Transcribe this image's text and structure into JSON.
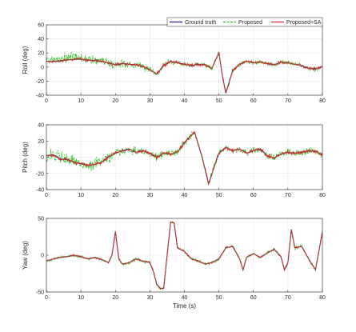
{
  "chart_data": [
    {
      "type": "line",
      "xlabel": "",
      "ylabel": "Roll (deg)",
      "xlim": [
        0,
        80
      ],
      "ylim": [
        -40,
        60
      ],
      "xticks": [
        0,
        10,
        20,
        30,
        40,
        50,
        60,
        70,
        80
      ],
      "yticks": [
        -40,
        -20,
        0,
        20,
        40,
        60
      ],
      "grid": true,
      "legend_position": "top-right",
      "legend": [
        "Ground truth",
        "Proposed",
        "Proposed+SA"
      ],
      "x": [
        0,
        2,
        4,
        6,
        8,
        10,
        12,
        14,
        16,
        18,
        20,
        22,
        24,
        26,
        28,
        30,
        32,
        34,
        36,
        38,
        40,
        42,
        44,
        46,
        48,
        49,
        50,
        51,
        52,
        54,
        56,
        58,
        60,
        62,
        64,
        66,
        68,
        70,
        72,
        74,
        76,
        78,
        80
      ],
      "series": [
        {
          "name": "Ground truth",
          "color": "#1f1f99",
          "values": [
            8,
            8,
            9,
            10,
            11,
            11,
            10,
            9,
            8,
            6,
            3,
            5,
            4,
            3,
            1,
            -4,
            -10,
            2,
            8,
            6,
            4,
            2,
            4,
            3,
            -2,
            10,
            20,
            -12,
            -37,
            -5,
            4,
            8,
            6,
            7,
            5,
            3,
            7,
            6,
            4,
            2,
            -2,
            -3,
            1
          ]
        },
        {
          "name": "Proposed",
          "color": "#22c422",
          "values": [
            8,
            10,
            10,
            12,
            15,
            12,
            11,
            9,
            9,
            6,
            3,
            6,
            4,
            3,
            1,
            -4,
            -10,
            2,
            8,
            6,
            4,
            2,
            4,
            3,
            -2,
            10,
            20,
            -12,
            -37,
            -5,
            4,
            8,
            6,
            7,
            5,
            3,
            7,
            6,
            4,
            2,
            -2,
            -3,
            1
          ],
          "noise": 12,
          "noise_profile": [
            [
              0,
              12
            ],
            [
              25,
              9
            ],
            [
              40,
              5
            ],
            [
              80,
              5
            ]
          ]
        },
        {
          "name": "Proposed+SA",
          "color": "#e02020",
          "values": [
            8,
            8,
            9,
            10,
            11,
            11,
            10,
            9,
            8,
            6,
            3,
            5,
            4,
            3,
            1,
            -4,
            -10,
            2,
            8,
            6,
            4,
            2,
            4,
            3,
            -2,
            10,
            20,
            -12,
            -37,
            -5,
            4,
            8,
            6,
            7,
            5,
            3,
            7,
            6,
            4,
            2,
            -2,
            -3,
            1
          ],
          "noise": 3
        }
      ]
    },
    {
      "type": "line",
      "xlabel": "",
      "ylabel": "Pitch (deg)",
      "xlim": [
        0,
        80
      ],
      "ylim": [
        -40,
        40
      ],
      "xticks": [
        0,
        10,
        20,
        30,
        40,
        50,
        60,
        70,
        80
      ],
      "yticks": [
        -40,
        -20,
        0,
        20,
        40
      ],
      "grid": true,
      "x": [
        0,
        2,
        4,
        6,
        8,
        10,
        12,
        14,
        16,
        18,
        20,
        22,
        24,
        26,
        28,
        30,
        32,
        34,
        36,
        38,
        40,
        42,
        43,
        45,
        46,
        47,
        48,
        50,
        52,
        54,
        56,
        58,
        60,
        62,
        64,
        66,
        68,
        70,
        72,
        74,
        76,
        78,
        80
      ],
      "series": [
        {
          "name": "Ground truth",
          "color": "#1f1f99",
          "values": [
            2,
            3,
            -2,
            -3,
            -6,
            -8,
            -10,
            -9,
            -6,
            0,
            5,
            8,
            10,
            6,
            8,
            5,
            0,
            5,
            4,
            6,
            18,
            27,
            30,
            2,
            -15,
            -33,
            -20,
            5,
            12,
            8,
            10,
            5,
            8,
            10,
            2,
            -1,
            4,
            6,
            5,
            6,
            8,
            7,
            3
          ]
        },
        {
          "name": "Proposed",
          "color": "#22c422",
          "values": [
            2,
            3,
            -2,
            -3,
            -6,
            -8,
            -10,
            -9,
            -6,
            0,
            5,
            8,
            10,
            6,
            8,
            5,
            0,
            5,
            4,
            6,
            18,
            27,
            30,
            2,
            -15,
            -33,
            -20,
            5,
            12,
            8,
            10,
            5,
            8,
            10,
            2,
            -1,
            4,
            6,
            5,
            6,
            8,
            7,
            3
          ],
          "noise": 14,
          "noise_profile": [
            [
              0,
              14
            ],
            [
              20,
              9
            ],
            [
              40,
              6
            ],
            [
              80,
              6
            ]
          ]
        },
        {
          "name": "Proposed+SA",
          "color": "#e02020",
          "values": [
            2,
            3,
            -2,
            -3,
            -6,
            -8,
            -10,
            -9,
            -6,
            0,
            5,
            8,
            10,
            6,
            8,
            5,
            0,
            5,
            4,
            6,
            18,
            27,
            30,
            2,
            -15,
            -33,
            -20,
            5,
            12,
            8,
            10,
            5,
            8,
            10,
            2,
            -1,
            4,
            6,
            5,
            6,
            8,
            7,
            3
          ],
          "noise": 3
        }
      ]
    },
    {
      "type": "line",
      "xlabel": "Time (s)",
      "ylabel": "Yaw (deg)",
      "xlim": [
        0,
        80
      ],
      "ylim": [
        -50,
        50
      ],
      "xticks": [
        0,
        10,
        20,
        30,
        40,
        50,
        60,
        70,
        80
      ],
      "yticks": [
        -50,
        0,
        50
      ],
      "grid": true,
      "x": [
        0,
        2,
        4,
        6,
        8,
        10,
        12,
        14,
        16,
        18,
        19,
        20,
        21,
        22,
        24,
        26,
        28,
        30,
        31,
        32,
        33,
        34,
        35,
        36,
        37,
        38,
        40,
        42,
        44,
        46,
        48,
        50,
        52,
        54,
        56,
        57,
        58,
        60,
        62,
        64,
        66,
        68,
        69,
        70,
        71,
        72,
        74,
        76,
        78,
        80
      ],
      "series": [
        {
          "name": "Ground truth",
          "color": "#1f1f99",
          "values": [
            -8,
            -5,
            -3,
            -2,
            0,
            -2,
            -5,
            -3,
            -6,
            -10,
            0,
            32,
            -5,
            -12,
            -10,
            -5,
            -8,
            -10,
            -22,
            -40,
            -45,
            -45,
            0,
            45,
            44,
            10,
            5,
            -5,
            -8,
            -12,
            -10,
            -5,
            10,
            12,
            -5,
            -20,
            -3,
            2,
            -3,
            3,
            8,
            -2,
            -20,
            -10,
            35,
            10,
            12,
            -5,
            -20,
            32
          ]
        },
        {
          "name": "Proposed",
          "color": "#22c422",
          "values": [
            -8,
            -5,
            -3,
            -2,
            0,
            -2,
            -5,
            -3,
            -6,
            -10,
            0,
            32,
            -5,
            -12,
            -10,
            -5,
            -8,
            -10,
            -22,
            -40,
            -45,
            -45,
            0,
            45,
            44,
            10,
            5,
            -5,
            -8,
            -12,
            -10,
            -5,
            10,
            12,
            -5,
            -20,
            -3,
            2,
            -3,
            3,
            8,
            -2,
            -20,
            -10,
            35,
            10,
            12,
            -5,
            -20,
            32
          ],
          "noise": 3
        },
        {
          "name": "Proposed+SA",
          "color": "#e02020",
          "values": [
            -8,
            -5,
            -3,
            -2,
            0,
            -2,
            -5,
            -3,
            -6,
            -10,
            0,
            32,
            -5,
            -12,
            -10,
            -5,
            -8,
            -10,
            -22,
            -40,
            -45,
            -45,
            0,
            45,
            44,
            10,
            5,
            -5,
            -8,
            -12,
            -10,
            -5,
            10,
            12,
            -5,
            -20,
            -3,
            2,
            -3,
            3,
            8,
            -2,
            -20,
            -10,
            35,
            10,
            12,
            -5,
            -20,
            32
          ],
          "noise": 1.5
        }
      ]
    }
  ]
}
